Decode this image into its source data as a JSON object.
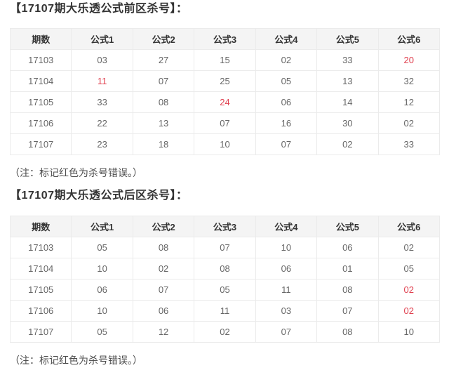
{
  "colors": {
    "red": "#e0404f",
    "header_bg": "#f4f4f4",
    "border": "#ebebeb",
    "title_text": "#333333",
    "cell_text": "#666666"
  },
  "sections": [
    {
      "id": "front-zone",
      "title": "【17107期大乐透公式前区杀号】：",
      "note": "（注：标记红色为杀号错误。）",
      "table": {
        "headers": [
          "期数",
          "公式1",
          "公式2",
          "公式3",
          "公式4",
          "公式5",
          "公式6"
        ],
        "rows": [
          {
            "cells": [
              "17103",
              "03",
              "27",
              "15",
              "02",
              "33",
              "20"
            ],
            "red_indices": [
              6
            ]
          },
          {
            "cells": [
              "17104",
              "11",
              "07",
              "25",
              "05",
              "13",
              "32"
            ],
            "red_indices": [
              1
            ]
          },
          {
            "cells": [
              "17105",
              "33",
              "08",
              "24",
              "06",
              "14",
              "12"
            ],
            "red_indices": [
              3
            ]
          },
          {
            "cells": [
              "17106",
              "22",
              "13",
              "07",
              "16",
              "30",
              "02"
            ],
            "red_indices": []
          },
          {
            "cells": [
              "17107",
              "23",
              "18",
              "10",
              "07",
              "02",
              "33"
            ],
            "red_indices": []
          }
        ]
      }
    },
    {
      "id": "back-zone",
      "title": "【17107期大乐透公式后区杀号】：",
      "note": "（注：标记红色为杀号错误。）",
      "table": {
        "headers": [
          "期数",
          "公式1",
          "公式2",
          "公式3",
          "公式4",
          "公式5",
          "公式6"
        ],
        "rows": [
          {
            "cells": [
              "17103",
              "05",
              "08",
              "07",
              "10",
              "06",
              "02"
            ],
            "red_indices": []
          },
          {
            "cells": [
              "17104",
              "10",
              "02",
              "08",
              "06",
              "01",
              "05"
            ],
            "red_indices": []
          },
          {
            "cells": [
              "17105",
              "06",
              "07",
              "05",
              "11",
              "08",
              "02"
            ],
            "red_indices": [
              6
            ]
          },
          {
            "cells": [
              "17106",
              "10",
              "06",
              "11",
              "03",
              "07",
              "02"
            ],
            "red_indices": [
              6
            ]
          },
          {
            "cells": [
              "17107",
              "05",
              "12",
              "02",
              "07",
              "08",
              "10"
            ],
            "red_indices": []
          }
        ]
      }
    }
  ]
}
